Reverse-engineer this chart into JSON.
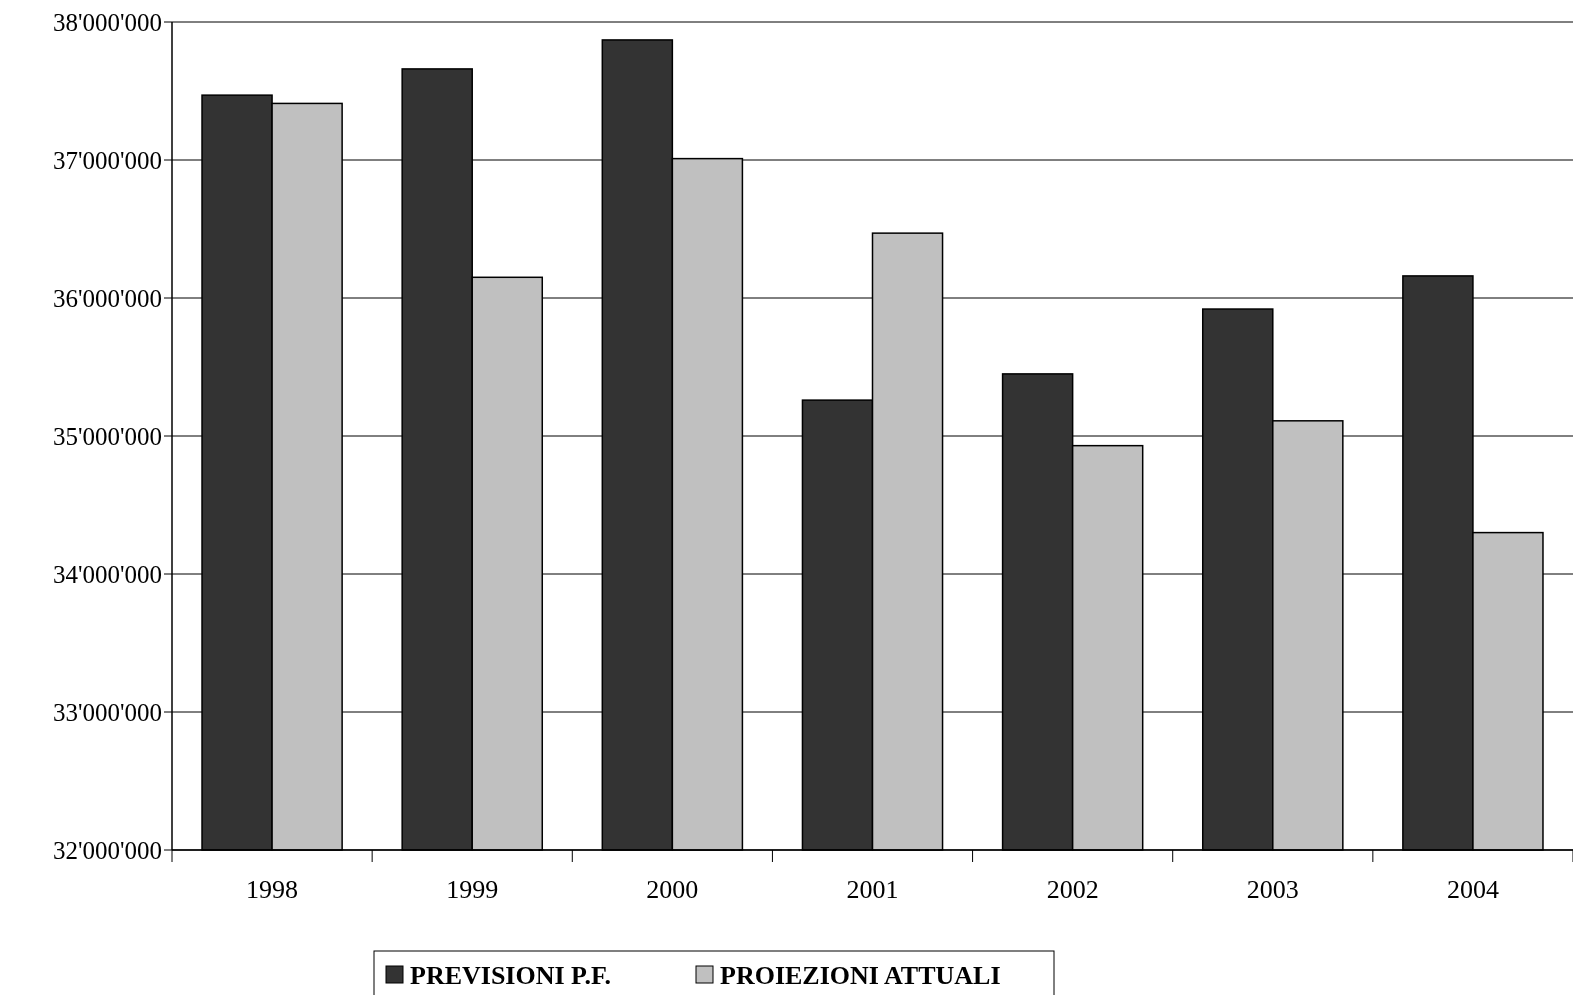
{
  "chart_data": {
    "type": "bar",
    "categories": [
      "1998",
      "1999",
      "2000",
      "2001",
      "2002",
      "2003",
      "2004"
    ],
    "series": [
      {
        "name": "PREVISIONI P.F.",
        "color": "#333333",
        "values": [
          37470000,
          37660000,
          37870000,
          35260000,
          35450000,
          35920000,
          36160000
        ]
      },
      {
        "name": "PROIEZIONI ATTUALI",
        "color": "#c0c0c0",
        "values": [
          37410000,
          36150000,
          37010000,
          36470000,
          34930000,
          35110000,
          34300000
        ]
      }
    ],
    "ylim": [
      32000000,
      38000000
    ],
    "yticks": [
      {
        "value": 32000000,
        "label": "32'000'000"
      },
      {
        "value": 33000000,
        "label": "33'000'000"
      },
      {
        "value": 34000000,
        "label": "34'000'000"
      },
      {
        "value": 35000000,
        "label": "35'000'000"
      },
      {
        "value": 36000000,
        "label": "36'000'000"
      },
      {
        "value": 37000000,
        "label": "37'000'000"
      },
      {
        "value": 38000000,
        "label": "38'000'000"
      }
    ],
    "grid": "y",
    "legend": "bottom"
  }
}
